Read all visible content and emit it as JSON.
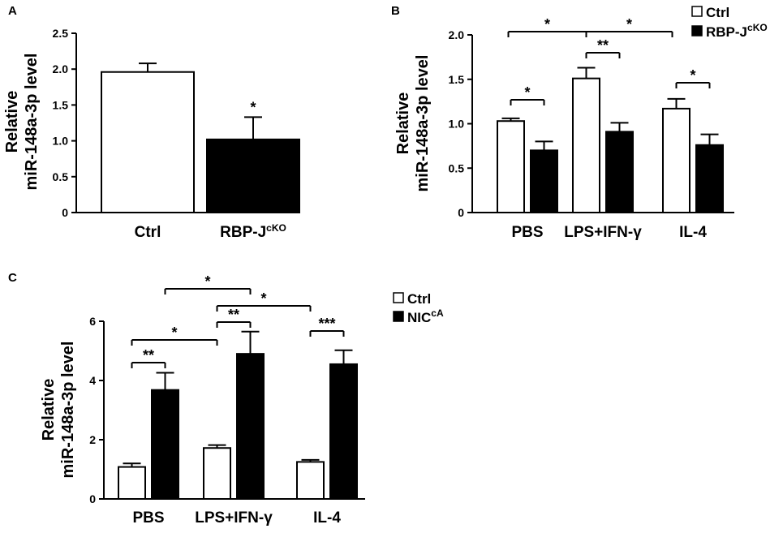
{
  "chart_data": [
    {
      "panel": "A",
      "type": "bar",
      "ylabel_line1": "Relative",
      "ylabel_line2": "miR-148a-3p level",
      "ylim": [
        0,
        2.5
      ],
      "yticks": [
        "0",
        "0.5",
        "1.0",
        "1.5",
        "2.0",
        "2.5"
      ],
      "categories": [
        {
          "base": "Ctrl",
          "sup": ""
        },
        {
          "base": "RBP-J",
          "sup": "cKO"
        }
      ],
      "values": [
        1.96,
        1.02
      ],
      "errors": [
        0.12,
        0.31
      ],
      "fills": [
        "#ffffff",
        "#000000"
      ],
      "significance": [
        {
          "bar": 1,
          "label": "*"
        }
      ]
    },
    {
      "panel": "B",
      "type": "bar",
      "ylabel_line1": "Relative",
      "ylabel_line2": "miR-148a-3p level",
      "ylim": [
        0,
        2.0
      ],
      "yticks": [
        "0",
        "0.5",
        "1.0",
        "1.5",
        "2.0"
      ],
      "categories": [
        "PBS",
        "LPS+IFN-γ",
        "IL-4"
      ],
      "series": [
        {
          "name": "Ctrl",
          "sup": "",
          "fill": "#ffffff",
          "values": [
            1.03,
            1.51,
            1.17
          ],
          "errors": [
            0.03,
            0.12,
            0.11
          ]
        },
        {
          "name": "RBP-J",
          "sup": "cKO",
          "fill": "#000000",
          "values": [
            0.7,
            0.91,
            0.76
          ],
          "errors": [
            0.1,
            0.1,
            0.12
          ]
        }
      ],
      "comparisons": [
        {
          "group": 0,
          "label": "*"
        },
        {
          "group": 1,
          "label": "**"
        },
        {
          "group": 2,
          "label": "*"
        },
        {
          "from_group": 0,
          "to_group": 1,
          "label": "*"
        },
        {
          "from_group": 1,
          "to_group": 2,
          "label": "*"
        }
      ]
    },
    {
      "panel": "C",
      "type": "bar",
      "ylabel_line1": "Relative",
      "ylabel_line2": "miR-148a-3p level",
      "ylim": [
        0,
        6
      ],
      "yticks": [
        "0",
        "2",
        "4",
        "6"
      ],
      "categories": [
        "PBS",
        "LPS+IFN-γ",
        "IL-4"
      ],
      "series": [
        {
          "name": "Ctrl",
          "sup": "",
          "fill": "#ffffff",
          "values": [
            1.08,
            1.72,
            1.25
          ],
          "errors": [
            0.12,
            0.1,
            0.07
          ]
        },
        {
          "name": "NIC",
          "sup": "cA",
          "fill": "#000000",
          "values": [
            3.68,
            4.9,
            4.55
          ],
          "errors": [
            0.58,
            0.75,
            0.47
          ]
        }
      ],
      "comparisons": [
        {
          "group": 0,
          "label": "**"
        },
        {
          "group": 1,
          "label": "**"
        },
        {
          "group": 2,
          "label": "***"
        },
        {
          "from_group": 0,
          "to_group": 1,
          "label": "*"
        },
        {
          "from_group": 1,
          "to_group": 2,
          "label": "*"
        },
        {
          "from_group": 0,
          "to_group": 1,
          "second_series": true,
          "label": "*"
        }
      ]
    }
  ]
}
